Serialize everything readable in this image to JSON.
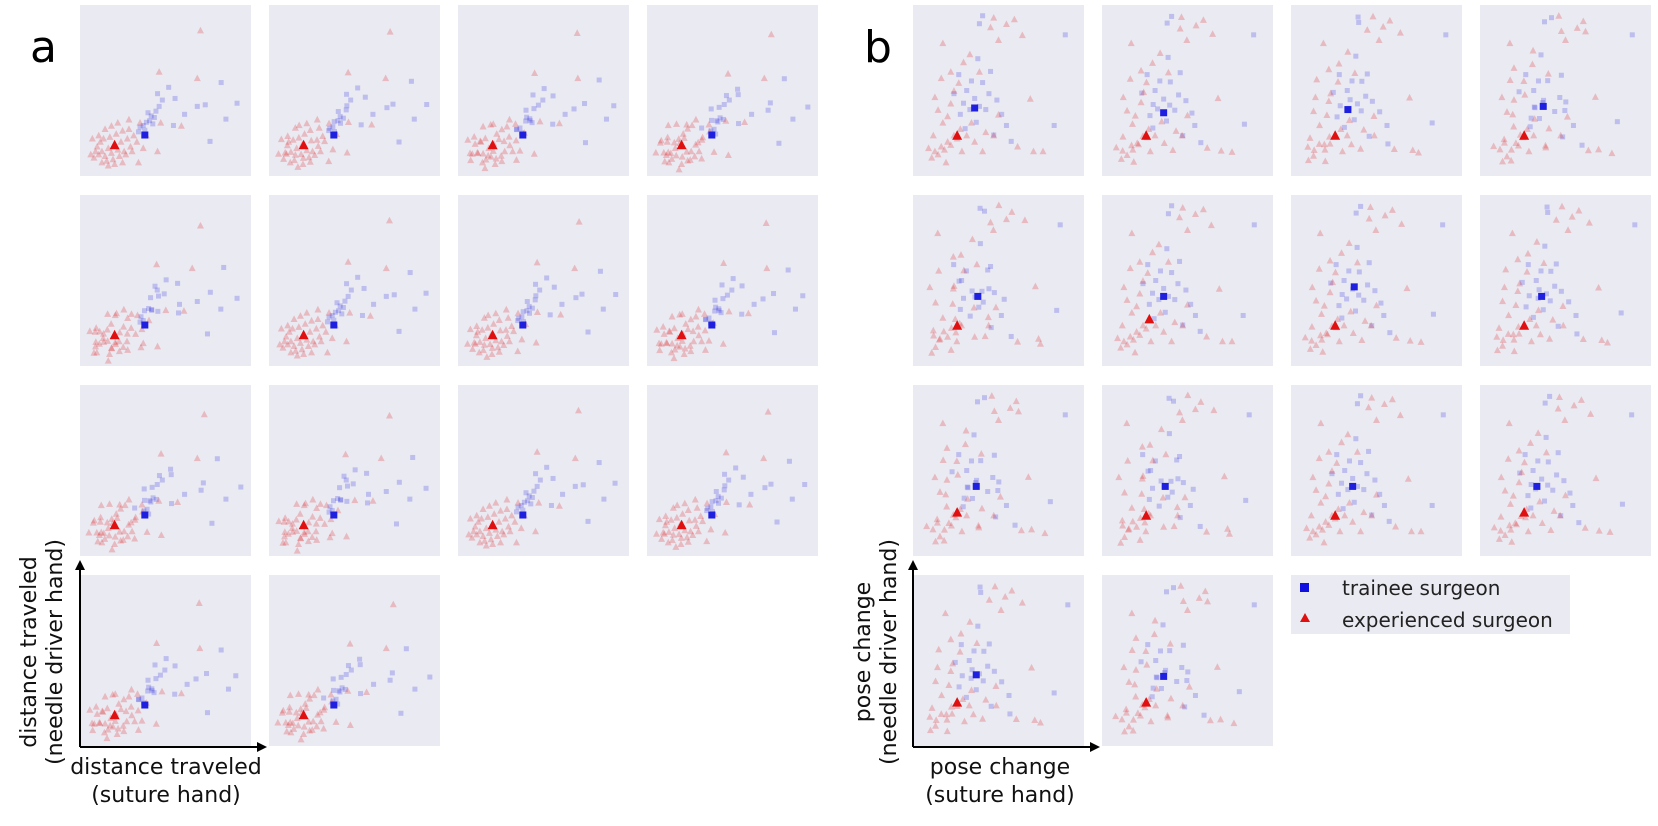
{
  "chart_data": [
    {
      "panel_label": "a",
      "type": "scatter",
      "layout": "grid",
      "subplot_count": 14,
      "rows": [
        4,
        4,
        4,
        2
      ],
      "xlabel": [
        "distance traveled",
        "(suture hand)"
      ],
      "ylabel": [
        "distance traveled",
        "(needle driver hand)"
      ],
      "grid": false,
      "tick_labels": "none",
      "series": [
        {
          "name": "trainee surgeon",
          "marker": "square",
          "color": "#1f1fe0",
          "faded_alpha": 0.22,
          "points": [
            [
              0.36,
              0.28
            ],
            [
              0.38,
              0.3
            ],
            [
              0.41,
              0.34
            ],
            [
              0.44,
              0.37
            ],
            [
              0.4,
              0.31
            ],
            [
              0.34,
              0.27
            ],
            [
              0.46,
              0.4
            ],
            [
              0.43,
              0.33
            ],
            [
              0.39,
              0.36
            ],
            [
              0.48,
              0.44
            ],
            [
              0.37,
              0.25
            ],
            [
              0.42,
              0.29
            ],
            [
              0.52,
              0.52
            ],
            [
              0.56,
              0.45
            ],
            [
              0.62,
              0.35
            ],
            [
              0.7,
              0.4
            ],
            [
              0.75,
              0.41
            ],
            [
              0.78,
              0.18
            ],
            [
              0.85,
              0.55
            ],
            [
              0.88,
              0.32
            ],
            [
              0.95,
              0.42
            ],
            [
              0.55,
              0.28
            ],
            [
              0.45,
              0.48
            ],
            [
              0.33,
              0.24
            ]
          ],
          "centroids": [
            [
              0.37,
              0.22
            ],
            [
              0.37,
              0.22
            ],
            [
              0.37,
              0.22
            ],
            [
              0.37,
              0.22
            ],
            [
              0.37,
              0.22
            ],
            [
              0.37,
              0.22
            ],
            [
              0.37,
              0.22
            ],
            [
              0.37,
              0.22
            ],
            [
              0.37,
              0.22
            ],
            [
              0.37,
              0.22
            ],
            [
              0.37,
              0.22
            ],
            [
              0.37,
              0.22
            ],
            [
              0.37,
              0.22
            ],
            [
              0.37,
              0.22
            ]
          ]
        },
        {
          "name": "experienced surgeon",
          "marker": "triangle",
          "color": "#e01010",
          "faded_alpha": 0.22,
          "points": [
            [
              0.05,
              0.08
            ],
            [
              0.08,
              0.1
            ],
            [
              0.1,
              0.12
            ],
            [
              0.12,
              0.09
            ],
            [
              0.14,
              0.14
            ],
            [
              0.16,
              0.11
            ],
            [
              0.18,
              0.16
            ],
            [
              0.2,
              0.13
            ],
            [
              0.22,
              0.18
            ],
            [
              0.24,
              0.12
            ],
            [
              0.26,
              0.2
            ],
            [
              0.28,
              0.15
            ],
            [
              0.3,
              0.22
            ],
            [
              0.07,
              0.15
            ],
            [
              0.09,
              0.18
            ],
            [
              0.11,
              0.2
            ],
            [
              0.13,
              0.06
            ],
            [
              0.15,
              0.21
            ],
            [
              0.17,
              0.07
            ],
            [
              0.19,
              0.23
            ],
            [
              0.21,
              0.09
            ],
            [
              0.23,
              0.25
            ],
            [
              0.25,
              0.1
            ],
            [
              0.27,
              0.26
            ],
            [
              0.29,
              0.12
            ],
            [
              0.06,
              0.12
            ],
            [
              0.32,
              0.18
            ],
            [
              0.34,
              0.3
            ],
            [
              0.12,
              0.26
            ],
            [
              0.1,
              0.05
            ],
            [
              0.36,
              0.14
            ],
            [
              0.16,
              0.28
            ],
            [
              0.2,
              0.3
            ],
            [
              0.33,
              0.05
            ],
            [
              0.18,
              0.04
            ],
            [
              0.45,
              0.12
            ],
            [
              0.47,
              0.3
            ],
            [
              0.46,
              0.62
            ],
            [
              0.6,
              0.28
            ],
            [
              0.7,
              0.58
            ],
            [
              0.72,
              0.88
            ],
            [
              0.23,
              0.05
            ],
            [
              0.08,
              0.22
            ],
            [
              0.38,
              0.22
            ],
            [
              0.27,
              0.32
            ],
            [
              0.14,
              0.03
            ],
            [
              0.03,
              0.1
            ],
            [
              0.04,
              0.2
            ]
          ],
          "centroids": [
            [
              0.18,
              0.16
            ],
            [
              0.18,
              0.16
            ],
            [
              0.18,
              0.16
            ],
            [
              0.18,
              0.16
            ],
            [
              0.18,
              0.16
            ],
            [
              0.18,
              0.16
            ],
            [
              0.18,
              0.16
            ],
            [
              0.18,
              0.16
            ],
            [
              0.18,
              0.16
            ],
            [
              0.18,
              0.16
            ],
            [
              0.18,
              0.16
            ],
            [
              0.18,
              0.16
            ],
            [
              0.18,
              0.16
            ],
            [
              0.18,
              0.16
            ]
          ]
        }
      ]
    },
    {
      "panel_label": "b",
      "type": "scatter",
      "layout": "grid",
      "subplot_count": 14,
      "rows": [
        4,
        4,
        4,
        2
      ],
      "xlabel": [
        "pose change",
        "(suture hand)"
      ],
      "ylabel": [
        "pose change",
        "(needle driver hand)"
      ],
      "grid": false,
      "tick_labels": "none",
      "legend": {
        "placement": "right-of-last-row",
        "entries": [
          {
            "label": "trainee surgeon",
            "marker": "square",
            "color": "#1010e0"
          },
          {
            "label": "experienced surgeon",
            "marker": "triangle",
            "color": "#e01010"
          }
        ]
      },
      "series": [
        {
          "name": "trainee surgeon",
          "marker": "square",
          "color": "#1f1fe0",
          "faded_alpha": 0.22,
          "points": [
            [
              0.28,
              0.42
            ],
            [
              0.32,
              0.38
            ],
            [
              0.35,
              0.45
            ],
            [
              0.38,
              0.4
            ],
            [
              0.3,
              0.5
            ],
            [
              0.26,
              0.35
            ],
            [
              0.4,
              0.55
            ],
            [
              0.42,
              0.38
            ],
            [
              0.36,
              0.3
            ],
            [
              0.33,
              0.56
            ],
            [
              0.44,
              0.48
            ],
            [
              0.22,
              0.48
            ],
            [
              0.47,
              0.22
            ],
            [
              0.52,
              0.35
            ],
            [
              0.55,
              0.28
            ],
            [
              0.45,
              0.62
            ],
            [
              0.38,
              0.92
            ],
            [
              0.4,
              0.97
            ],
            [
              0.85,
              0.28
            ],
            [
              0.92,
              0.85
            ],
            [
              0.58,
              0.18
            ],
            [
              0.29,
              0.26
            ],
            [
              0.49,
              0.44
            ],
            [
              0.37,
              0.7
            ],
            [
              0.25,
              0.6
            ]
          ],
          "centroids": [
            [
              0.35,
              0.39
            ],
            [
              0.35,
              0.36
            ],
            [
              0.32,
              0.38
            ],
            [
              0.36,
              0.4
            ],
            [
              0.37,
              0.4
            ],
            [
              0.35,
              0.4
            ],
            [
              0.36,
              0.46
            ],
            [
              0.35,
              0.4
            ],
            [
              0.36,
              0.4
            ],
            [
              0.36,
              0.4
            ],
            [
              0.35,
              0.4
            ],
            [
              0.32,
              0.4
            ],
            [
              0.36,
              0.41
            ],
            [
              0.35,
              0.4
            ]
          ]
        },
        {
          "name": "experienced surgeon",
          "marker": "triangle",
          "color": "#e01010",
          "faded_alpha": 0.22,
          "points": [
            [
              0.08,
              0.08
            ],
            [
              0.1,
              0.12
            ],
            [
              0.12,
              0.1
            ],
            [
              0.14,
              0.15
            ],
            [
              0.16,
              0.13
            ],
            [
              0.18,
              0.18
            ],
            [
              0.2,
              0.16
            ],
            [
              0.22,
              0.22
            ],
            [
              0.24,
              0.2
            ],
            [
              0.26,
              0.26
            ],
            [
              0.15,
              0.3
            ],
            [
              0.18,
              0.34
            ],
            [
              0.12,
              0.38
            ],
            [
              0.2,
              0.42
            ],
            [
              0.1,
              0.46
            ],
            [
              0.22,
              0.5
            ],
            [
              0.25,
              0.55
            ],
            [
              0.14,
              0.58
            ],
            [
              0.2,
              0.62
            ],
            [
              0.3,
              0.22
            ],
            [
              0.35,
              0.18
            ],
            [
              0.06,
              0.14
            ],
            [
              0.28,
              0.68
            ],
            [
              0.32,
              0.73
            ],
            [
              0.15,
              0.8
            ],
            [
              0.45,
              0.9
            ],
            [
              0.47,
              0.96
            ],
            [
              0.6,
              0.95
            ],
            [
              0.65,
              0.85
            ],
            [
              0.5,
              0.82
            ],
            [
              0.55,
              0.92
            ],
            [
              0.7,
              0.45
            ],
            [
              0.5,
              0.35
            ],
            [
              0.4,
              0.12
            ],
            [
              0.47,
              0.22
            ],
            [
              0.62,
              0.15
            ],
            [
              0.72,
              0.12
            ],
            [
              0.78,
              0.12
            ],
            [
              0.33,
              0.3
            ],
            [
              0.27,
              0.12
            ],
            [
              0.09,
              0.22
            ],
            [
              0.17,
              0.05
            ],
            [
              0.38,
              0.62
            ],
            [
              0.42,
              0.24
            ]
          ],
          "centroids": [
            [
              0.24,
              0.22
            ],
            [
              0.24,
              0.22
            ],
            [
              0.24,
              0.22
            ],
            [
              0.24,
              0.22
            ],
            [
              0.24,
              0.22
            ],
            [
              0.26,
              0.26
            ],
            [
              0.24,
              0.22
            ],
            [
              0.24,
              0.22
            ],
            [
              0.24,
              0.24
            ],
            [
              0.24,
              0.22
            ],
            [
              0.24,
              0.22
            ],
            [
              0.24,
              0.24
            ],
            [
              0.24,
              0.24
            ],
            [
              0.24,
              0.24
            ]
          ]
        }
      ]
    }
  ]
}
